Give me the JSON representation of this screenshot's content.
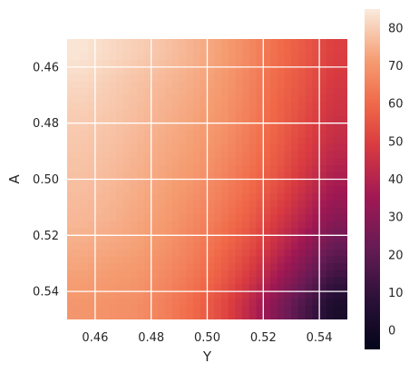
{
  "chart_data": {
    "type": "heatmap",
    "title": "",
    "xlabel": "Y",
    "ylabel": "A",
    "x_range": [
      0.45,
      0.55
    ],
    "y_range": [
      0.45,
      0.55
    ],
    "y_inverted": true,
    "xticks": [
      "0.46",
      "0.48",
      "0.50",
      "0.52",
      "0.54"
    ],
    "xtick_values": [
      0.46,
      0.48,
      0.5,
      0.52,
      0.54
    ],
    "yticks": [
      "0.46",
      "0.48",
      "0.50",
      "0.52",
      "0.54"
    ],
    "ytick_values": [
      0.46,
      0.48,
      0.5,
      0.52,
      0.54
    ],
    "grid": true,
    "colormap": "rocket",
    "colorbar": {
      "range": [
        -5,
        85
      ],
      "ticks": [
        "0",
        "10",
        "20",
        "30",
        "40",
        "50",
        "60",
        "70",
        "80"
      ],
      "tick_values": [
        0,
        10,
        20,
        30,
        40,
        50,
        60,
        70,
        80
      ]
    },
    "x_centers": [
      0.455,
      0.465,
      0.475,
      0.485,
      0.495,
      0.505,
      0.515,
      0.525,
      0.535,
      0.545
    ],
    "y_centers": [
      0.455,
      0.465,
      0.475,
      0.485,
      0.495,
      0.505,
      0.515,
      0.525,
      0.535,
      0.545
    ],
    "z": [
      [
        84,
        82,
        80,
        78,
        75,
        72,
        67,
        61,
        56,
        50
      ],
      [
        82,
        80,
        78,
        76,
        74,
        71,
        66,
        60,
        55,
        48
      ],
      [
        80,
        79,
        77,
        75,
        73,
        70,
        65,
        59,
        53,
        46
      ],
      [
        79,
        78,
        76,
        74,
        72,
        69,
        64,
        58,
        51,
        44
      ],
      [
        78,
        77,
        75,
        73,
        71,
        67,
        62,
        56,
        48,
        40
      ],
      [
        77,
        76,
        74,
        72,
        69,
        65,
        60,
        53,
        44,
        35
      ],
      [
        76,
        75,
        73,
        71,
        67,
        63,
        57,
        48,
        39,
        29
      ],
      [
        74,
        73,
        72,
        69,
        65,
        60,
        53,
        43,
        32,
        21
      ],
      [
        72,
        71,
        70,
        67,
        63,
        57,
        48,
        36,
        24,
        12
      ],
      [
        70,
        69,
        68,
        65,
        60,
        53,
        42,
        28,
        15,
        3
      ]
    ]
  },
  "colors": {
    "grid": "#ffffff",
    "text": "#262626",
    "background": "#ffffff"
  }
}
